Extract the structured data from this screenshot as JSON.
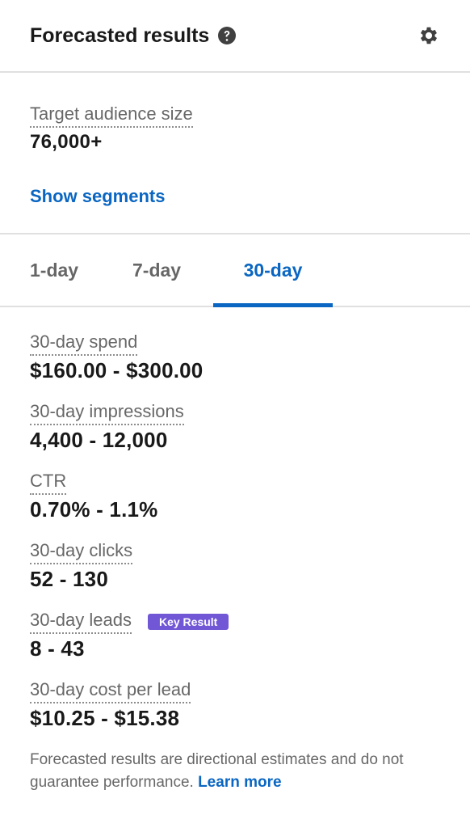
{
  "header": {
    "title": "Forecasted results"
  },
  "audience": {
    "label": "Target audience size",
    "value": "76,000+",
    "show_segments": "Show segments"
  },
  "tabs": [
    {
      "label": "1-day",
      "selected": false
    },
    {
      "label": "7-day",
      "selected": false
    },
    {
      "label": "30-day",
      "selected": true
    }
  ],
  "metrics": [
    {
      "label": "30-day spend",
      "value": "$160.00 - $300.00"
    },
    {
      "label": "30-day impressions",
      "value": "4,400 - 12,000"
    },
    {
      "label": "CTR",
      "value": "0.70% - 1.1%"
    },
    {
      "label": "30-day clicks",
      "value": "52 - 130"
    },
    {
      "label": "30-day leads",
      "value": "8 - 43",
      "badge": "Key Result"
    },
    {
      "label": "30-day cost per lead",
      "value": "$10.25 - $15.38"
    }
  ],
  "footer": {
    "disclaimer": "Forecasted results are directional estimates and do not guarantee performance.",
    "learn_more": "Learn more"
  },
  "colors": {
    "accent": "#0a66c2",
    "badge": "#7156d6",
    "divider": "#e0e0e0"
  },
  "icons": {
    "help": "question-circle-icon",
    "settings": "gear-icon"
  }
}
